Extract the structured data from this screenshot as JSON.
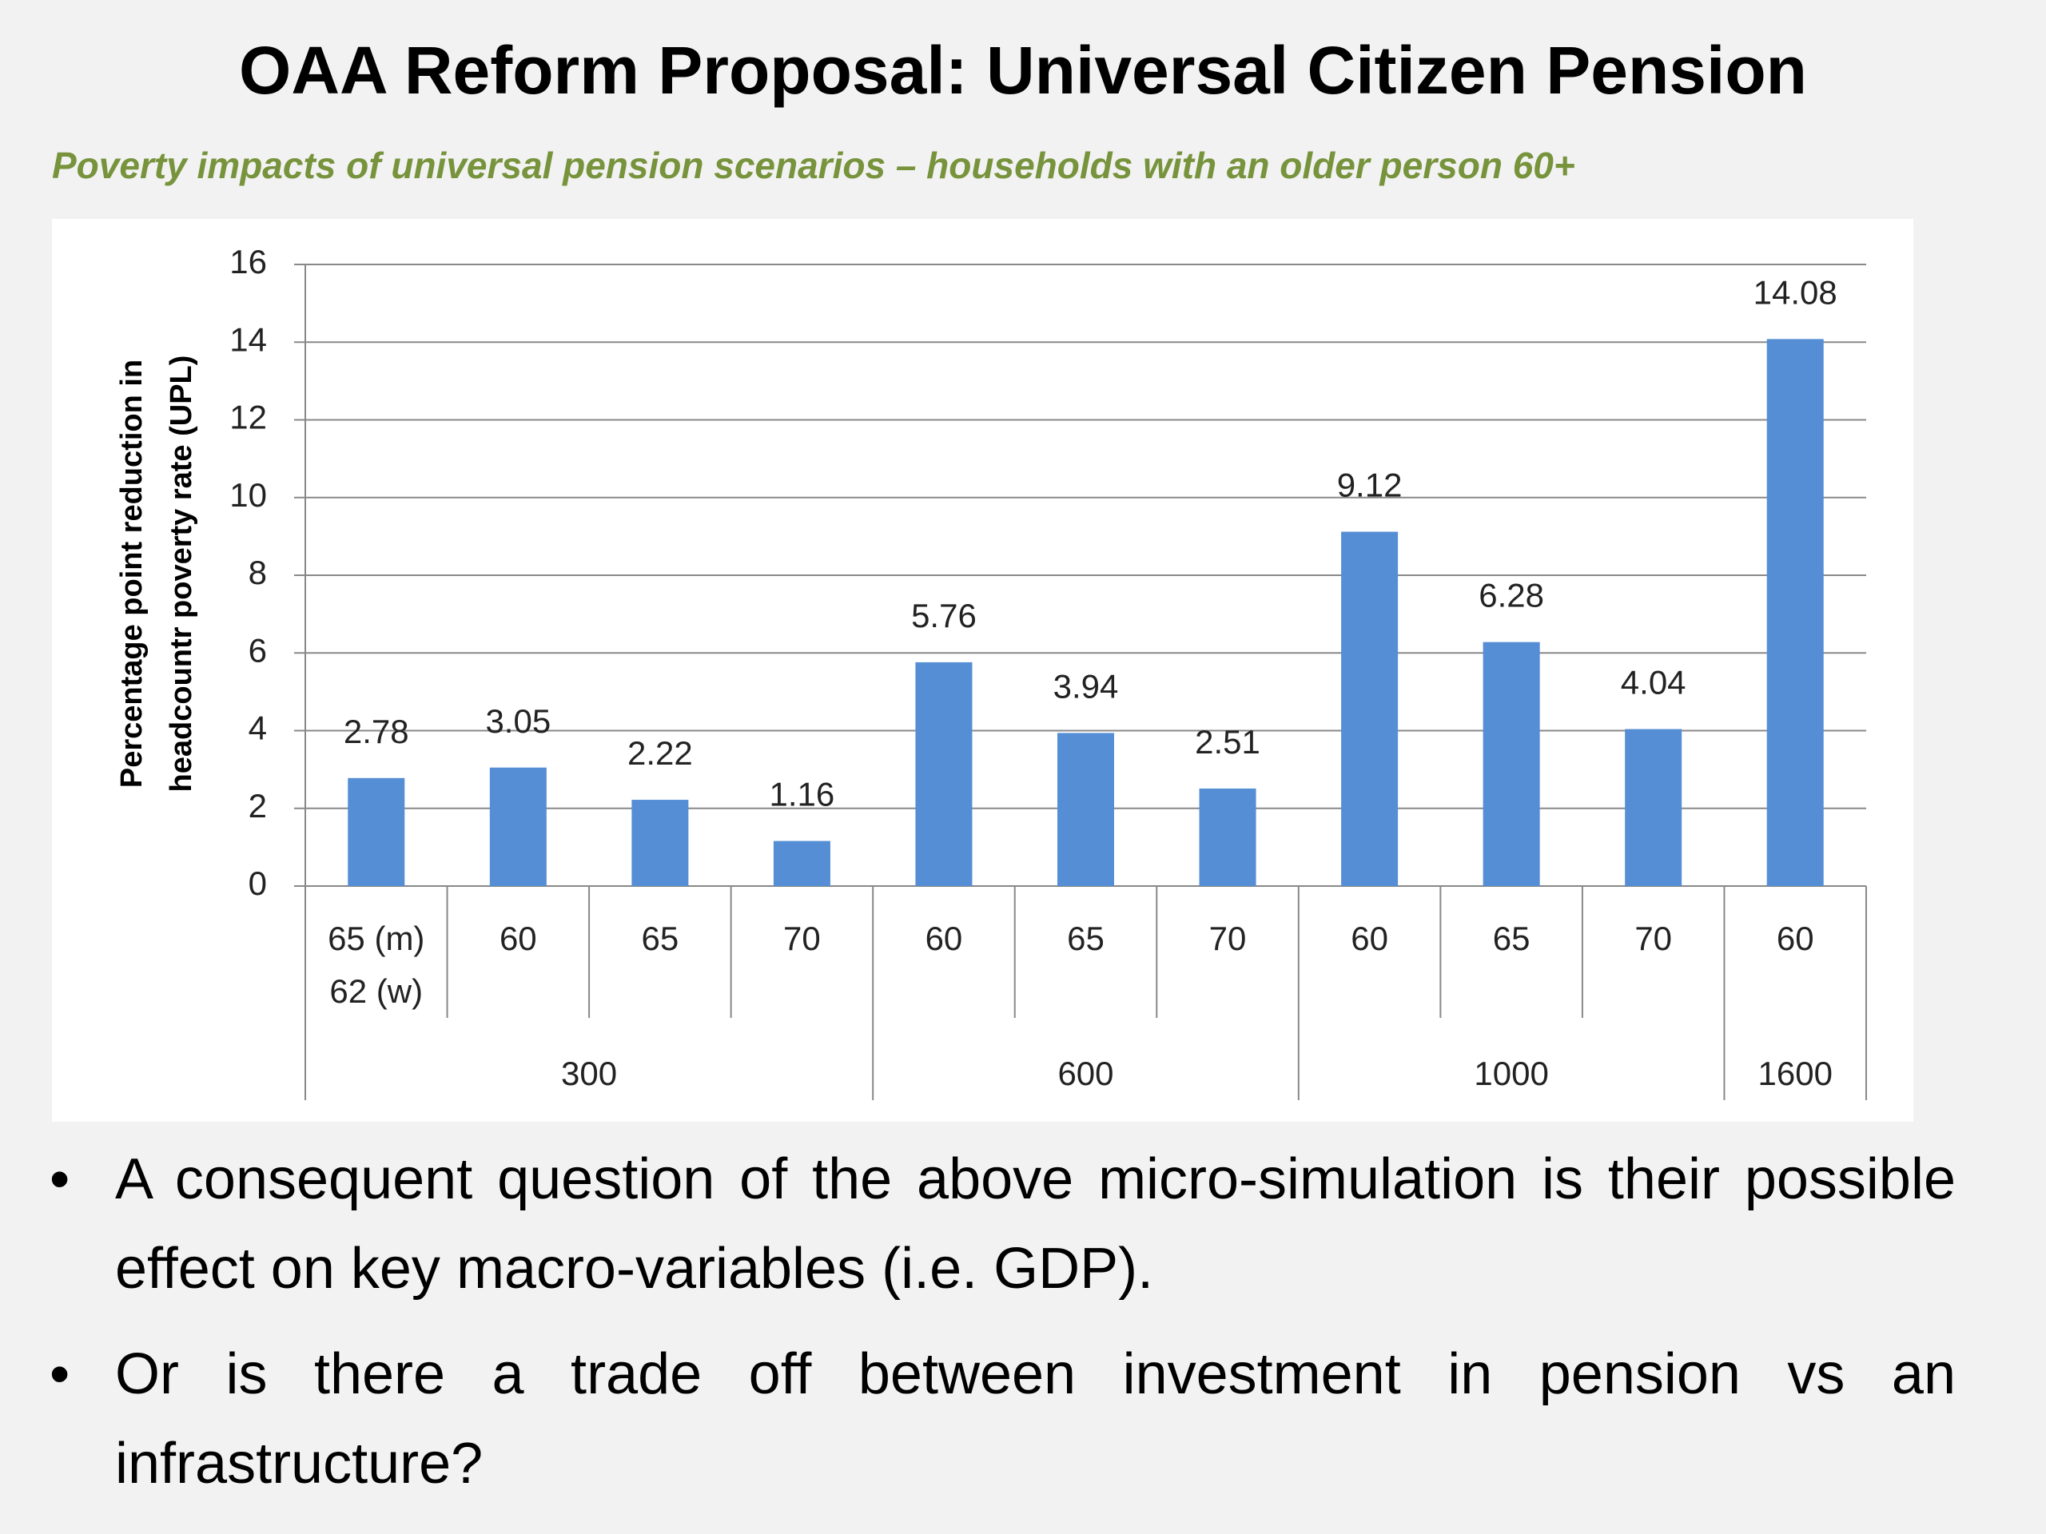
{
  "title": "OAA Reform Proposal: Universal Citizen Pension",
  "subtitle": "Poverty impacts of universal pension scenarios – households with an older person 60+",
  "chart_data": {
    "type": "bar",
    "y_label": "Percentage point reduction in headcountr poverty rate (UPL)",
    "color": "#558ed5",
    "groups": [
      {
        "name": "300",
        "categories": [
          "65 (m)\n62 (w)",
          "60",
          "65",
          "70"
        ],
        "values": [
          2.78,
          3.05,
          2.22,
          1.16
        ]
      },
      {
        "name": "600",
        "categories": [
          "60",
          "65",
          "70"
        ],
        "values": [
          5.76,
          3.94,
          2.51
        ]
      },
      {
        "name": "1000",
        "categories": [
          "60",
          "65",
          "70"
        ],
        "values": [
          9.12,
          6.28,
          4.04
        ]
      },
      {
        "name": "1600",
        "categories": [
          "60"
        ],
        "values": [
          14.08
        ]
      }
    ],
    "ylim": [
      0,
      16
    ],
    "yticks": [
      0,
      2,
      4,
      6,
      8,
      10,
      12,
      14,
      16
    ],
    "grid": true
  },
  "bullets": [
    "A consequent question of the above micro-simulation is their possible effect on key macro-variables (i.e. GDP).",
    "Or is there a trade off between investment in pension vs an infrastructure?"
  ]
}
